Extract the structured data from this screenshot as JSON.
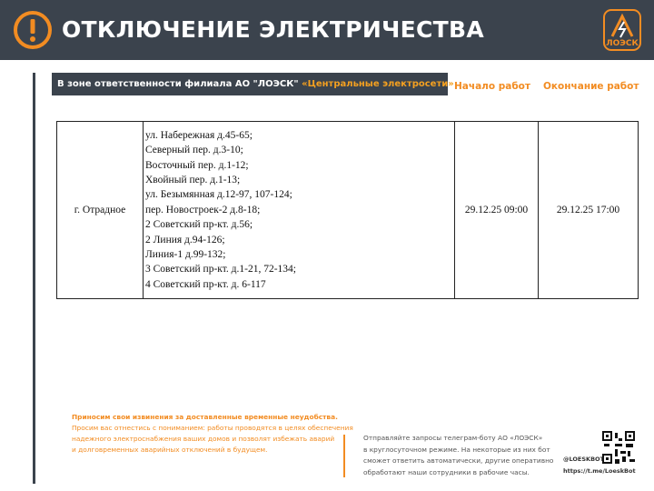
{
  "header": {
    "title": "ОТКЛЮЧЕНИЕ ЭЛЕКТРИЧЕСТВА",
    "logo": "ЛОЭСК"
  },
  "zone": {
    "text": "В зоне ответственности филиала АО \"ЛОЭСК\"",
    "branch": "«Центральные электросети»"
  },
  "columns": {
    "start": "Начало работ",
    "end": "Окончание работ"
  },
  "table": {
    "rows": [
      {
        "locality": "г. Отрадное",
        "addresses": [
          "ул. Набережная д.45-65;",
          "Северный пер. д.3-10;",
          "Восточный пер. д.1-12;",
          "Хвойный пер. д.1-13;",
          "ул. Безымянная д.12-97, 107-124;",
          "пер. Новостроек-2 д.8-18;",
          "2 Советский пр-кт. д.56;",
          "2 Линия д.94-126;",
          "Линия-1 д.99-132;",
          "3 Советский пр-кт. д.1-21, 72-134;",
          "4 Советский пр-кт. д. 6-117"
        ],
        "start": "29.12.25 09:00",
        "end": "29.12.25 17:00"
      }
    ]
  },
  "footer": {
    "apology": "Приносим свои извинения за доставленные временные неудобства.",
    "request": [
      "Просим вас отнестись с пониманием: работы проводятся в целях обеспечения",
      "надежного электроснабжения ваших домов и позволят избежать аварий",
      "и долговременных аварийных отключений в будущем."
    ],
    "bot_info": [
      "Отправляйте запросы телеграм-боту АО «ЛОЭСК»",
      "в круглосуточном режиме. На некоторые из них бот",
      "сможет ответить автоматически, другие оперативно",
      "обработают наши сотрудники в рабочие часы."
    ],
    "bot_handle": "@LOESKBOT",
    "bot_link": "https://t.me/LoeskBot"
  }
}
